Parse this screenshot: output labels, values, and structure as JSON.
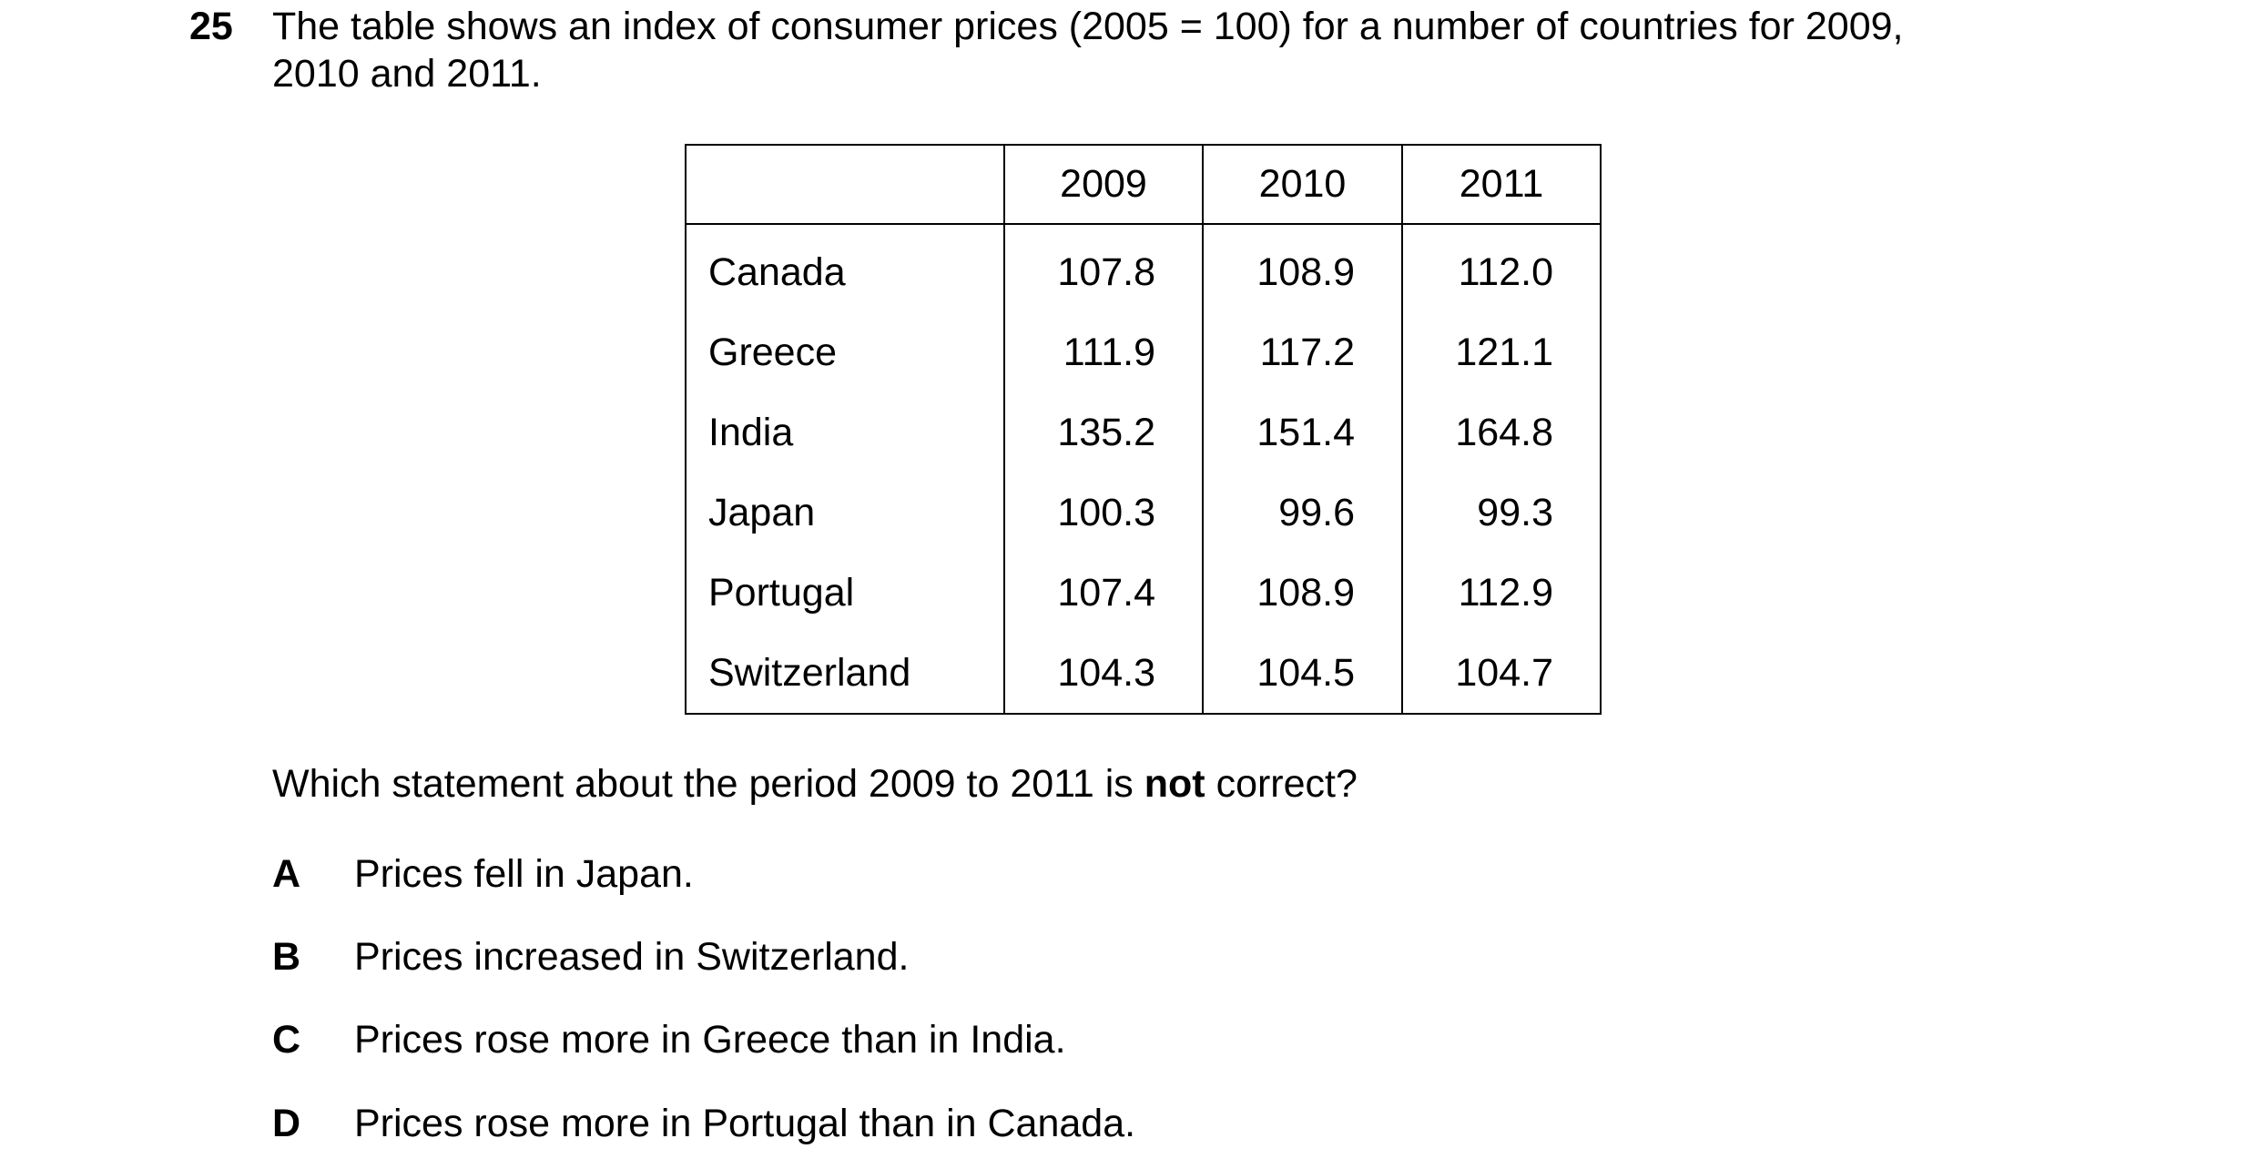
{
  "question": {
    "number": "25",
    "stem_lines": [
      "The table shows an index of consumer prices (2005 = 100) for a number of countries for 2009,",
      "2010 and 2011."
    ],
    "table": {
      "header": [
        "",
        "2009",
        "2010",
        "2011"
      ],
      "rows": [
        [
          "Canada",
          "107.8",
          "108.9",
          "112.0"
        ],
        [
          "Greece",
          "111.9",
          "117.2",
          "121.1"
        ],
        [
          "India",
          "135.2",
          "151.4",
          "164.8"
        ],
        [
          "Japan",
          "100.3",
          "99.6",
          "99.3"
        ],
        [
          "Portugal",
          "107.4",
          "108.9",
          "112.9"
        ],
        [
          "Switzerland",
          "104.3",
          "104.5",
          "104.7"
        ]
      ]
    },
    "prompt": [
      "Which statement about the period 2009 to 2011 is ",
      "not",
      " correct?"
    ],
    "options": [
      {
        "letter": "A",
        "text": "Prices fell in Japan."
      },
      {
        "letter": "B",
        "text": "Prices increased in Switzerland."
      },
      {
        "letter": "C",
        "text": "Prices rose more in Greece than in India."
      },
      {
        "letter": "D",
        "text": "Prices rose more in Portugal than in Canada."
      }
    ]
  }
}
